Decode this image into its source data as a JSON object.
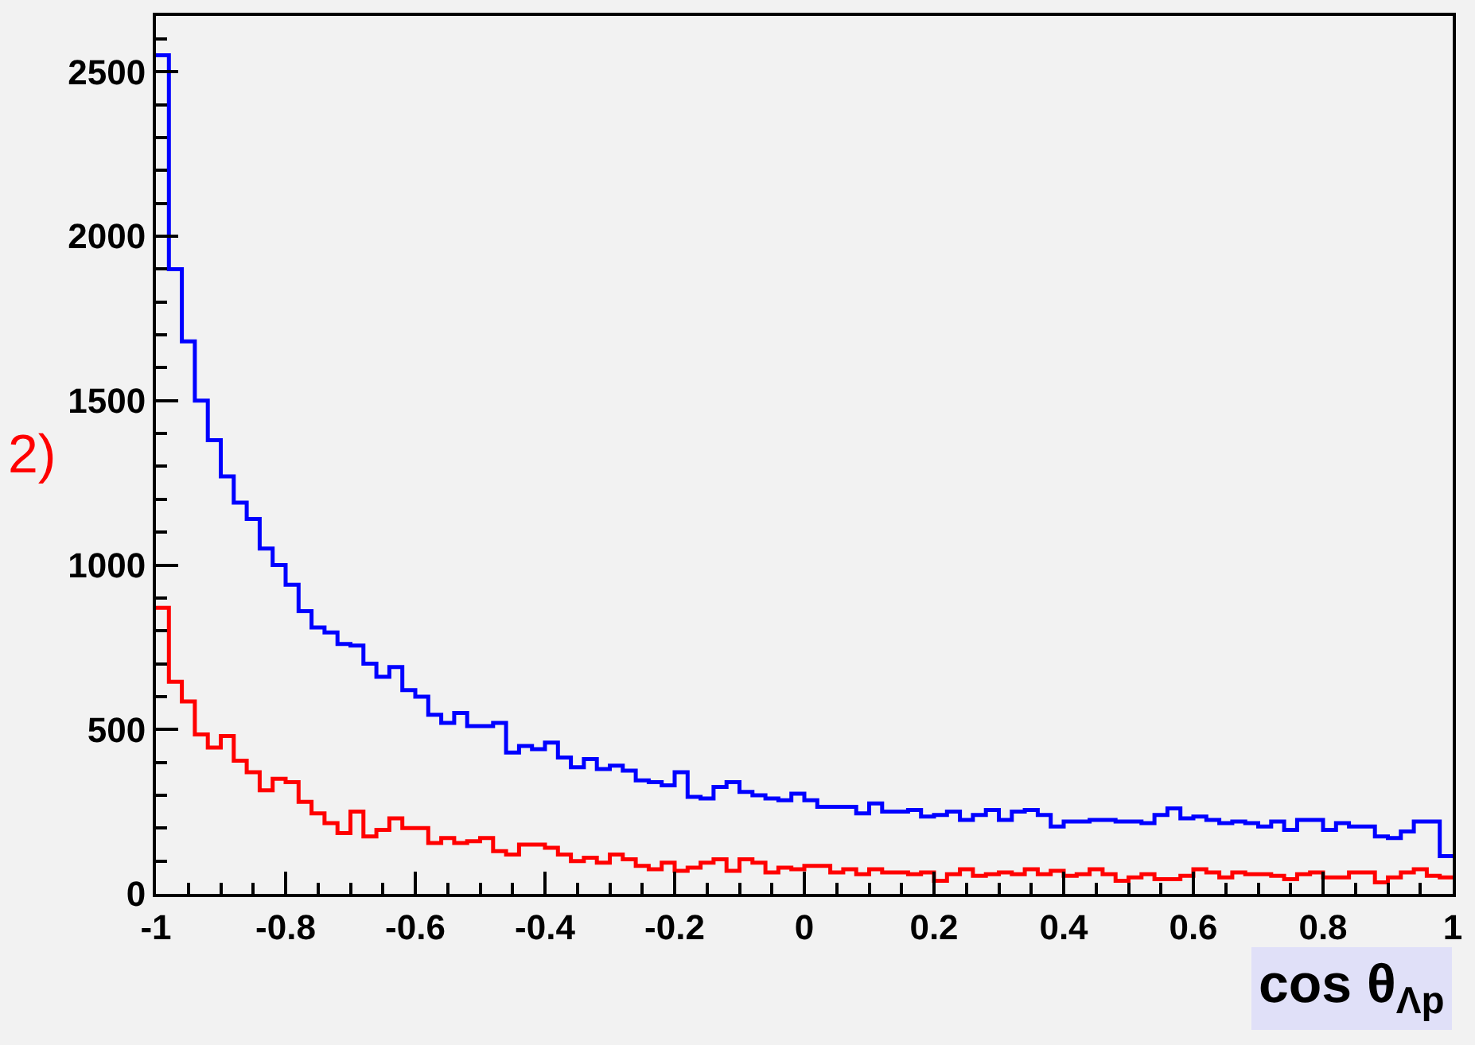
{
  "chart_data": {
    "type": "histogram",
    "xlabel": "cos θ$_{Λp}$",
    "annotations": [
      "2)"
    ],
    "bins": [
      -1,
      -0.98,
      -0.96,
      -0.94,
      -0.92,
      -0.9,
      -0.88,
      -0.86,
      -0.84,
      -0.82,
      -0.8,
      -0.78,
      -0.76,
      -0.74,
      -0.72,
      -0.7,
      -0.68,
      -0.66,
      -0.64,
      -0.62,
      -0.6,
      -0.58,
      -0.56,
      -0.54,
      -0.52,
      -0.5,
      -0.48,
      -0.46,
      -0.44,
      -0.42,
      -0.4,
      -0.38,
      -0.36,
      -0.34,
      -0.32,
      -0.3,
      -0.28,
      -0.26,
      -0.24,
      -0.22,
      -0.2,
      -0.18,
      -0.16,
      -0.14,
      -0.12,
      -0.1,
      -0.08,
      -0.06,
      -0.04,
      -0.02,
      0,
      0.02,
      0.04,
      0.06,
      0.08,
      0.1,
      0.12,
      0.14,
      0.16,
      0.18,
      0.2,
      0.22,
      0.24,
      0.26,
      0.28,
      0.3,
      0.32,
      0.34,
      0.36,
      0.38,
      0.4,
      0.42,
      0.44,
      0.46,
      0.48,
      0.5,
      0.52,
      0.54,
      0.56,
      0.58,
      0.6,
      0.62,
      0.64,
      0.66,
      0.68,
      0.7,
      0.72,
      0.74,
      0.76,
      0.78,
      0.8,
      0.82,
      0.84,
      0.86,
      0.88,
      0.9,
      0.92,
      0.94,
      0.96,
      0.98,
      1
    ],
    "series": [
      {
        "color": "#0000ff",
        "values": [
          2550,
          1900,
          1680,
          1500,
          1380,
          1270,
          1190,
          1140,
          1050,
          1000,
          940,
          860,
          810,
          795,
          760,
          755,
          700,
          660,
          690,
          620,
          600,
          545,
          520,
          550,
          510,
          510,
          520,
          430,
          450,
          440,
          460,
          415,
          385,
          410,
          380,
          390,
          375,
          345,
          340,
          330,
          370,
          295,
          290,
          325,
          340,
          310,
          300,
          290,
          285,
          305,
          285,
          265,
          265,
          265,
          245,
          275,
          250,
          250,
          255,
          235,
          240,
          250,
          225,
          240,
          255,
          225,
          250,
          255,
          240,
          205,
          220,
          220,
          225,
          225,
          220,
          220,
          215,
          240,
          260,
          230,
          235,
          225,
          215,
          220,
          215,
          205,
          220,
          195,
          225,
          225,
          195,
          215,
          205,
          205,
          175,
          170,
          190,
          220,
          220,
          115
        ]
      },
      {
        "color": "#ff0000",
        "values": [
          870,
          645,
          585,
          485,
          445,
          480,
          405,
          370,
          315,
          350,
          340,
          280,
          245,
          215,
          185,
          250,
          175,
          195,
          230,
          200,
          200,
          155,
          170,
          155,
          160,
          170,
          130,
          120,
          150,
          150,
          140,
          120,
          100,
          110,
          95,
          120,
          105,
          85,
          75,
          95,
          70,
          80,
          95,
          105,
          70,
          105,
          95,
          65,
          80,
          75,
          85,
          85,
          65,
          75,
          60,
          75,
          65,
          65,
          60,
          65,
          40,
          60,
          75,
          55,
          60,
          65,
          60,
          75,
          60,
          70,
          55,
          60,
          75,
          60,
          40,
          50,
          60,
          45,
          45,
          55,
          75,
          65,
          50,
          65,
          60,
          60,
          55,
          45,
          60,
          65,
          50,
          50,
          65,
          65,
          35,
          50,
          65,
          75,
          55,
          50
        ]
      }
    ],
    "xlim": [
      -1,
      1
    ],
    "ylim": [
      0,
      2670
    ],
    "xticks": [
      -1,
      -0.8,
      -0.6,
      -0.4,
      -0.2,
      0,
      0.2,
      0.4,
      0.6,
      0.8,
      1
    ],
    "yticks": [
      0,
      500,
      1000,
      1500,
      2000,
      2500
    ]
  }
}
